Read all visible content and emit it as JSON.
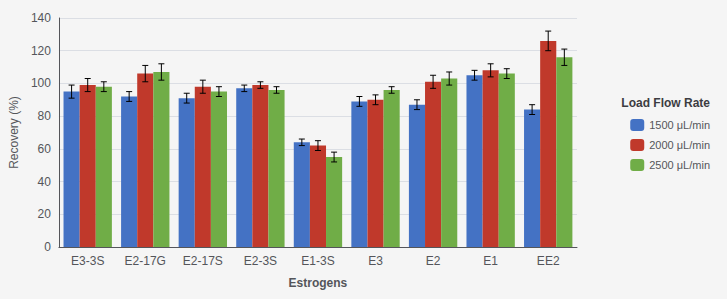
{
  "chart_data": {
    "type": "bar",
    "categories": [
      "E3-3S",
      "E2-17G",
      "E2-17S",
      "E2-3S",
      "E1-3S",
      "E3",
      "E2",
      "E1",
      "EE2"
    ],
    "series": [
      {
        "name": "1500 μL/min",
        "color": "#4472C4",
        "values": [
          95,
          92,
          91,
          97,
          64,
          89,
          87,
          105,
          84
        ],
        "errors": [
          4,
          3,
          3,
          2,
          2,
          3,
          3,
          3,
          3
        ]
      },
      {
        "name": "2000 μL/min",
        "color": "#C0392B",
        "values": [
          99,
          106,
          98,
          99,
          62,
          90,
          101,
          108,
          126
        ],
        "errors": [
          4,
          5,
          4,
          2,
          3,
          3,
          4,
          4,
          6
        ]
      },
      {
        "name": "2500 μL/min",
        "color": "#70AD47",
        "values": [
          98,
          107,
          95,
          96,
          55,
          96,
          103,
          106,
          116
        ],
        "errors": [
          3,
          5,
          3,
          2,
          3,
          2,
          4,
          3,
          5
        ]
      }
    ],
    "legend_title": "Load Flow Rate",
    "xlabel": "Estrogens",
    "ylabel": "Recovery (%)",
    "ylim": [
      0,
      140
    ],
    "yticks": [
      0,
      20,
      40,
      60,
      80,
      100,
      120,
      140
    ],
    "grid": true,
    "legend": "right"
  }
}
